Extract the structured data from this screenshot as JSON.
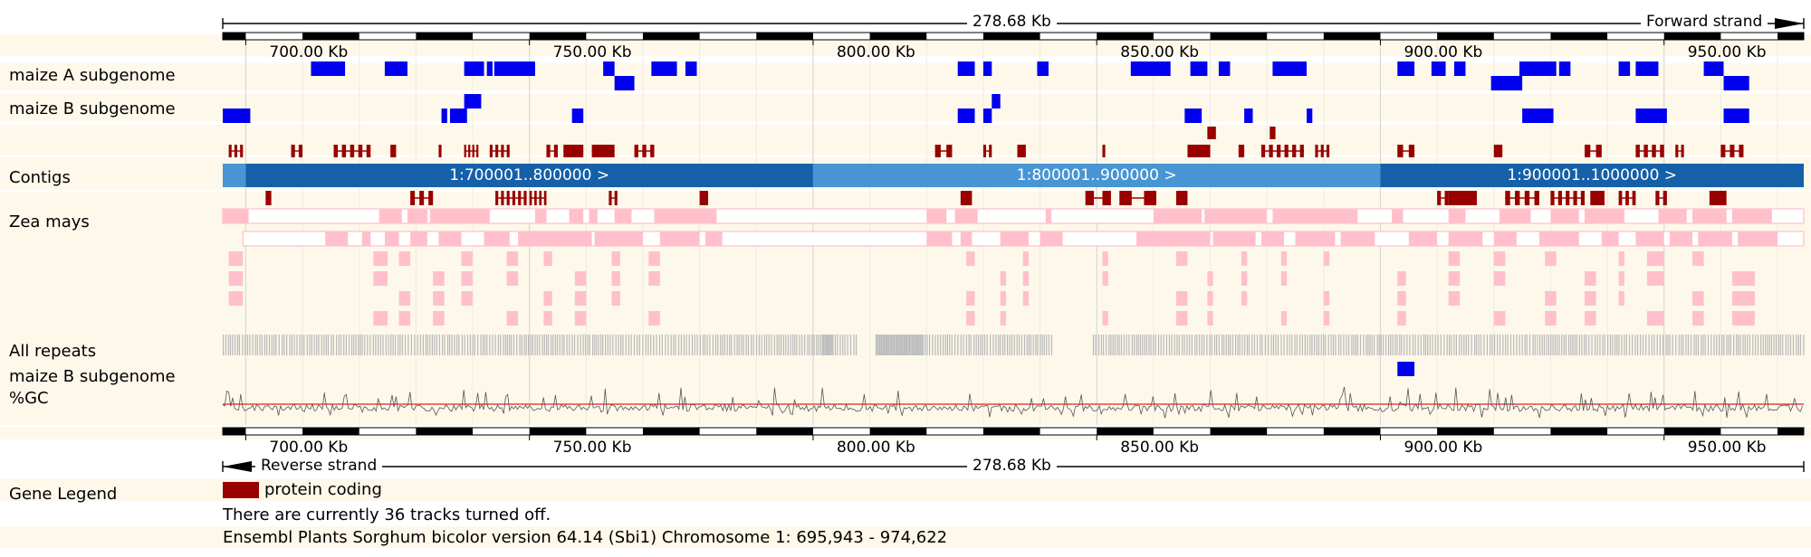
{
  "header": {
    "span_label": "278.68 Kb",
    "forward_strand": "Forward strand"
  },
  "footer_ruler": {
    "span_label": "278.68 Kb",
    "reverse_strand": "Reverse strand"
  },
  "scale": {
    "start_kb": 695.943,
    "end_kb": 974.622,
    "ticks": [
      {
        "kb": 700,
        "label": "700.00 Kb"
      },
      {
        "kb": 750,
        "label": "750.00 Kb"
      },
      {
        "kb": 800,
        "label": "800.00 Kb"
      },
      {
        "kb": 850,
        "label": "850.00 Kb"
      },
      {
        "kb": 900,
        "label": "900.00 Kb"
      },
      {
        "kb": 950,
        "label": "950.00 Kb"
      }
    ]
  },
  "tracks": {
    "maize_a": {
      "label": "maize A subgenome"
    },
    "maize_b": {
      "label": "maize B subgenome"
    },
    "contigs": {
      "label": "Contigs"
    },
    "zea_mays": {
      "label": "Zea mays"
    },
    "repeats": {
      "label": "All repeats"
    },
    "maize_b2": {
      "label": "maize B subgenome"
    },
    "gc": {
      "label": "%GC"
    }
  },
  "contigs": [
    {
      "start": 695.943,
      "end": 700,
      "label": ""
    },
    {
      "start": 700,
      "end": 800,
      "label": "1:700001..800000 >"
    },
    {
      "start": 800,
      "end": 900,
      "label": "1:800001..900000 >"
    },
    {
      "start": 900,
      "end": 974.622,
      "label": "1:900001..1000000 >"
    }
  ],
  "legend": {
    "label": "Gene Legend",
    "item": "protein coding"
  },
  "messages": {
    "tracks_off": "There are currently 36 tracks turned off.",
    "version": "Ensembl Plants Sorghum bicolor version 64.14 (Sbi1) Chromosome 1: 695,943 - 974,622"
  },
  "colors": {
    "row_bg": "#fdf8ea",
    "blue_block": "#0000ee",
    "gene": "#990000",
    "contig_dark": "#1560a8",
    "contig_light": "#4895d4",
    "pink": "#ffc0cb",
    "repeat": "#c8c8c8",
    "gc_line": "#555555",
    "gc_mid": "#e02020"
  }
}
